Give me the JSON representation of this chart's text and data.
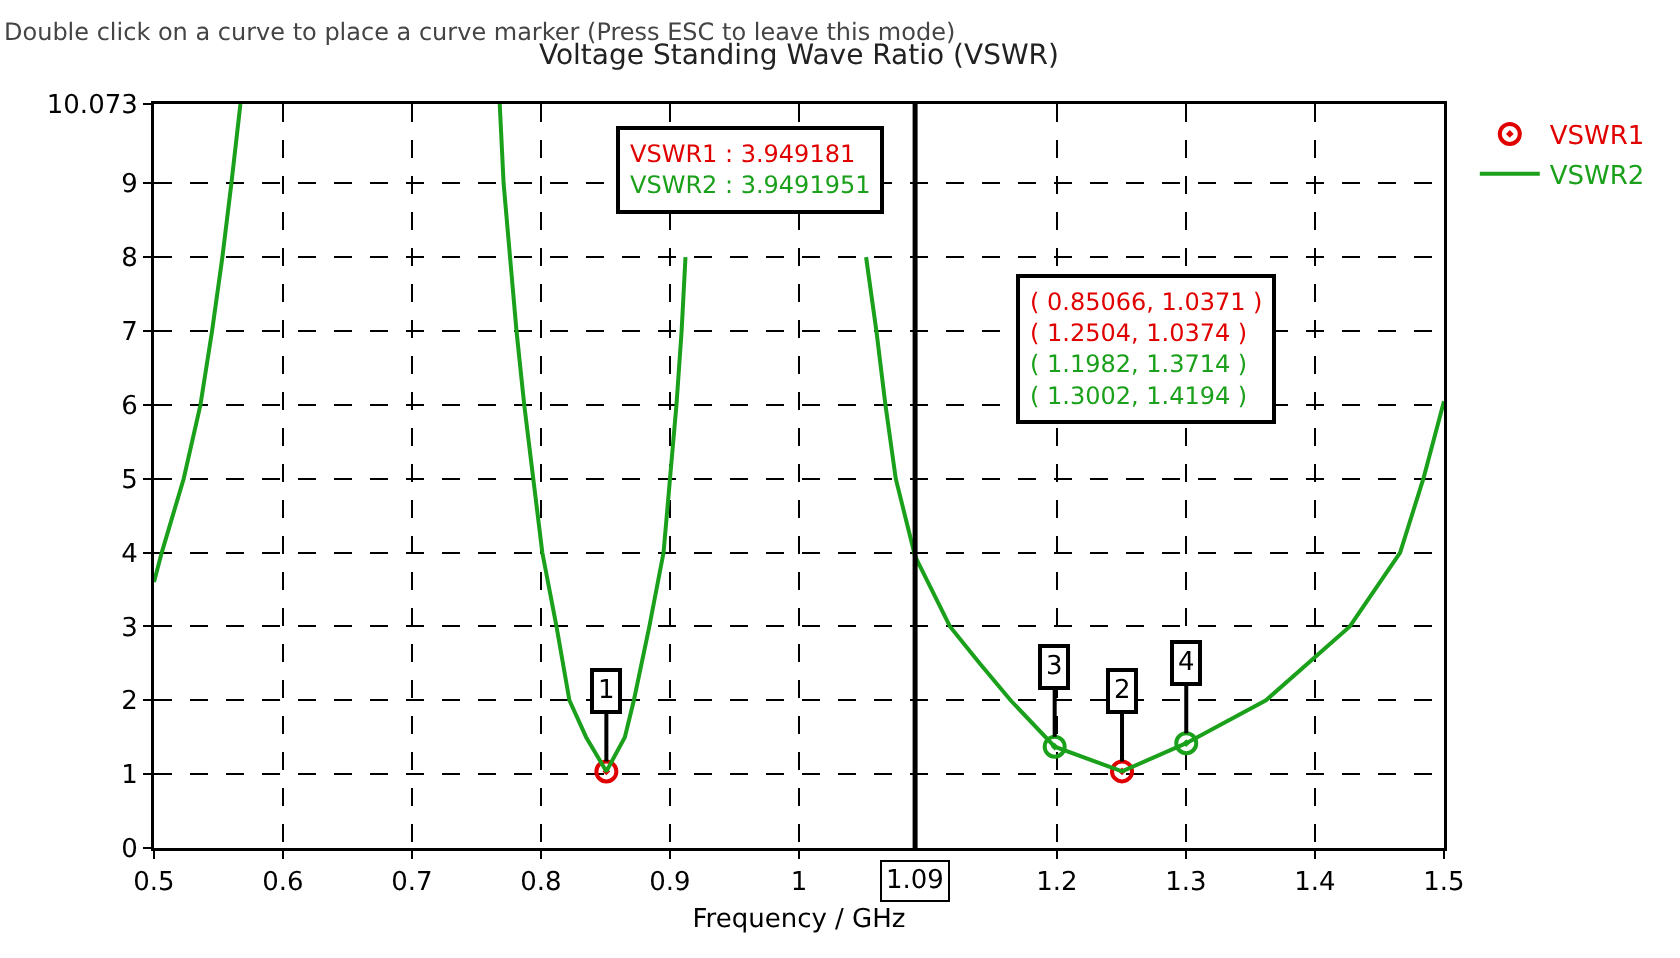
{
  "chart_data": {
    "type": "line",
    "title": "Voltage Standing Wave Ratio (VSWR)",
    "xlabel": "Frequency / GHz",
    "x": [
      0.5,
      0.506,
      0.523,
      0.536,
      0.545,
      0.553,
      0.56,
      0.567,
      0.6,
      0.768,
      0.771,
      0.776,
      0.781,
      0.787,
      0.794,
      0.801,
      0.812,
      0.822,
      0.835,
      0.85066,
      0.865,
      0.872,
      0.884,
      0.895,
      0.9,
      0.905,
      0.909,
      0.912,
      0.916,
      0.917,
      0.98,
      1.038,
      1.047,
      1.052,
      1.06,
      1.067,
      1.075,
      1.09,
      1.117,
      1.14,
      1.164,
      1.1982,
      1.2504,
      1.3002,
      1.33,
      1.362,
      1.427,
      1.466,
      1.484,
      1.5
    ],
    "series": [
      {
        "name": "VSWR1",
        "type": "scatter",
        "color": "#e00000",
        "marker": "circle",
        "x": [
          0.85066,
          1.2504
        ],
        "values": [
          1.0371,
          1.0374
        ]
      },
      {
        "name": "VSWR2",
        "color": "#1aa01a",
        "values": [
          3.6,
          4,
          5,
          6,
          7,
          8,
          9,
          10.073,
          null,
          10.073,
          9,
          8,
          7,
          6,
          5,
          4,
          3,
          2,
          1.5,
          1.0371,
          1.5,
          2,
          3,
          4,
          5,
          6,
          7,
          8,
          null,
          null,
          null,
          null,
          null,
          8,
          7,
          6,
          5,
          3.949,
          3,
          2.5,
          2,
          1.3714,
          1.0374,
          1.4194,
          1.7,
          2,
          3,
          4,
          5,
          6.05
        ]
      },
      {
        "type": "scatter",
        "color": "#1aa01a",
        "marker": "circle",
        "x": [
          1.1982,
          1.3002
        ],
        "values": [
          1.3714,
          1.4194
        ]
      }
    ],
    "xlim": [
      0.5,
      1.5
    ],
    "xticks": [
      0.5,
      0.6,
      0.7,
      0.8,
      0.9,
      1,
      1.2,
      1.3,
      1.4,
      1.5
    ],
    "ylim": [
      0,
      10.073
    ],
    "yticks": [
      0,
      1,
      2,
      3,
      4,
      5,
      6,
      7,
      8,
      9,
      10.073
    ],
    "grid": true,
    "legend": "top right",
    "ref_lines": [
      {
        "axis": "x",
        "value": 1.09,
        "label": "1.09",
        "color": "#000000"
      }
    ],
    "annotations": [
      "Double click on a curve to place a curve marker (Press ESC to leave this mode)",
      "VSWR1 : 3.949181",
      "VSWR2 : 3.9491951",
      "( 0.85066, 1.0371 )",
      "( 1.2504, 1.0374 )",
      "( 1.1982, 1.3714 )",
      "( 1.3002, 1.4194 )",
      {
        "text": "1",
        "x": 0.85066,
        "y": 1.0371
      },
      {
        "text": "2",
        "x": 1.2504,
        "y": 1.0374
      },
      {
        "text": "3",
        "x": 1.1982,
        "y": 1.3714
      },
      {
        "text": "4",
        "x": 1.3002,
        "y": 1.4194
      }
    ]
  }
}
